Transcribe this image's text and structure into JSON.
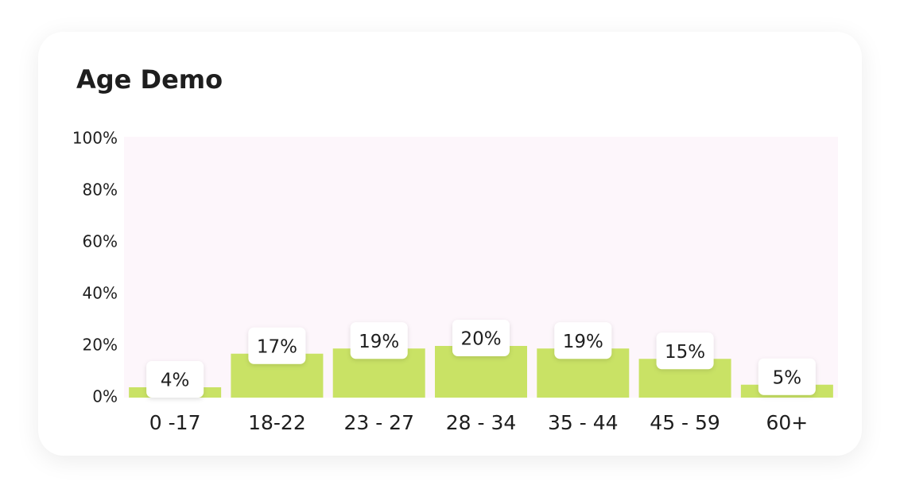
{
  "chart_data": {
    "type": "bar",
    "title": "Age Demo",
    "categories": [
      "0 -17",
      "18-22",
      "23 - 27",
      "28 - 34",
      "35 - 44",
      "45 - 59",
      "60+"
    ],
    "values": [
      4,
      17,
      19,
      20,
      19,
      15,
      5
    ],
    "value_labels": [
      "4%",
      "17%",
      "19%",
      "20%",
      "19%",
      "15%",
      "5%"
    ],
    "color": "#c9e265",
    "ylim": [
      0,
      100
    ],
    "yticks": [
      {
        "value": 0,
        "label": "0%"
      },
      {
        "value": 20,
        "label": "20%"
      },
      {
        "value": 40,
        "label": "40%"
      },
      {
        "value": 60,
        "label": "60%"
      },
      {
        "value": 80,
        "label": "80%"
      },
      {
        "value": 100,
        "label": "100%"
      }
    ],
    "grid": false
  }
}
